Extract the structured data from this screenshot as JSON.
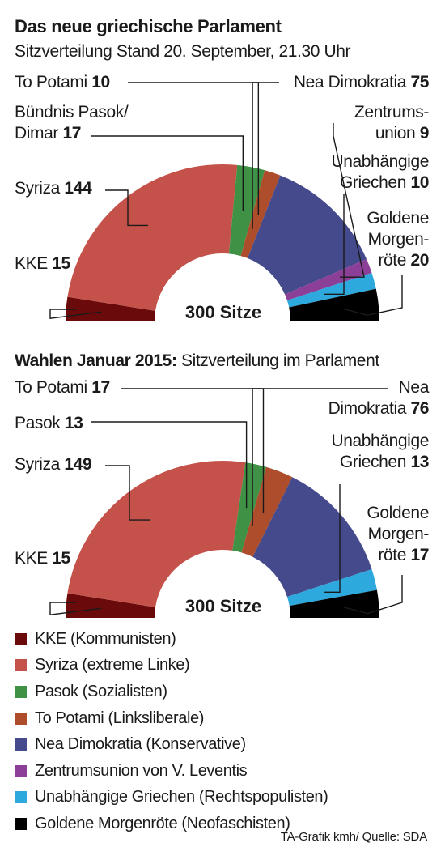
{
  "title": "Das neue griechische Parlament",
  "subtitle": "Sitzverteilung Stand 20. September, 21.30 Uhr",
  "chart2_title_bold": "Wahlen Januar 2015:",
  "chart2_title_rest": "Sitzverteilung im Parlament",
  "source": "TA-Grafik kmh/ Quelle: SDA",
  "colors": {
    "kke": "#6b0a0a",
    "syriza": "#c4524a",
    "pasok": "#3f9145",
    "potami": "#ad4d2c",
    "nd": "#454a8c",
    "zentrum": "#8c3f97",
    "anel": "#2ea9de",
    "golden": "#000000"
  },
  "chart_data": [
    {
      "type": "pie",
      "subtype": "half-donut",
      "center_label": "300 Sitze",
      "total": 300,
      "slices": [
        {
          "key": "kke",
          "name": "KKE",
          "value": 15
        },
        {
          "key": "syriza",
          "name": "Syriza",
          "value": 144
        },
        {
          "key": "pasok",
          "name": "Bündnis Pasok/ Dimar",
          "value": 17
        },
        {
          "key": "potami",
          "name": "To Potami",
          "value": 10
        },
        {
          "key": "nd",
          "name": "Nea Dimokratia",
          "value": 75
        },
        {
          "key": "zentrum",
          "name": "Zentrumsunion",
          "value": 9
        },
        {
          "key": "anel",
          "name": "Unabhängige Griechen",
          "value": 10
        },
        {
          "key": "golden",
          "name": "Goldene Morgenröte",
          "value": 20
        }
      ],
      "labels": {
        "potami": {
          "line1": "To Potami",
          "num": "10"
        },
        "pasok": {
          "line1": "Bündnis Pasok/",
          "line2": "Dimar",
          "num": "17"
        },
        "syriza": {
          "line1": "Syriza",
          "num": "144"
        },
        "kke": {
          "line1": "KKE",
          "num": "15"
        },
        "nd": {
          "line1": "Nea Dimokratia",
          "num": "75"
        },
        "zentrum": {
          "line1": "Zentrums-",
          "line2": "union",
          "num": "9"
        },
        "anel": {
          "line1": "Unabhängige",
          "line2": "Griechen",
          "num": "10"
        },
        "golden": {
          "line1": "Goldene",
          "line2": "Morgen-",
          "line3": "röte",
          "num": "20"
        }
      }
    },
    {
      "type": "pie",
      "subtype": "half-donut",
      "center_label": "300 Sitze",
      "total": 300,
      "slices": [
        {
          "key": "kke",
          "name": "KKE",
          "value": 15
        },
        {
          "key": "syriza",
          "name": "Syriza",
          "value": 149
        },
        {
          "key": "pasok",
          "name": "Pasok",
          "value": 13
        },
        {
          "key": "potami",
          "name": "To Potami",
          "value": 17
        },
        {
          "key": "nd",
          "name": "Nea Dimokratia",
          "value": 76
        },
        {
          "key": "anel",
          "name": "Unabhängige Griechen",
          "value": 13
        },
        {
          "key": "golden",
          "name": "Goldene Morgenröte",
          "value": 17
        }
      ],
      "labels": {
        "potami": {
          "line1": "To Potami",
          "num": "17"
        },
        "pasok": {
          "line1": "Pasok",
          "num": "13"
        },
        "syriza": {
          "line1": "Syriza",
          "num": "149"
        },
        "kke": {
          "line1": "KKE",
          "num": "15"
        },
        "nd": {
          "line1": "Nea",
          "line2": "Dimokratia",
          "num": "76"
        },
        "anel": {
          "line1": "Unabhängige",
          "line2": "Griechen",
          "num": "13"
        },
        "golden": {
          "line1": "Goldene",
          "line2": "Morgen-",
          "line3": "röte",
          "num": "17"
        }
      }
    }
  ],
  "legend": [
    {
      "key": "kke",
      "label": "KKE (Kommunisten)"
    },
    {
      "key": "syriza",
      "label": "Syriza (extreme Linke)"
    },
    {
      "key": "pasok",
      "label": "Pasok (Sozialisten)"
    },
    {
      "key": "potami",
      "label": "To Potami (Linksliberale)"
    },
    {
      "key": "nd",
      "label": "Nea Dimokratia (Konservative)"
    },
    {
      "key": "zentrum",
      "label": "Zentrumsunion von V. Leventis"
    },
    {
      "key": "anel",
      "label": "Unabhängige Griechen (Rechtspopulisten)"
    },
    {
      "key": "golden",
      "label": "Goldene Morgenröte (Neofaschisten)"
    }
  ]
}
